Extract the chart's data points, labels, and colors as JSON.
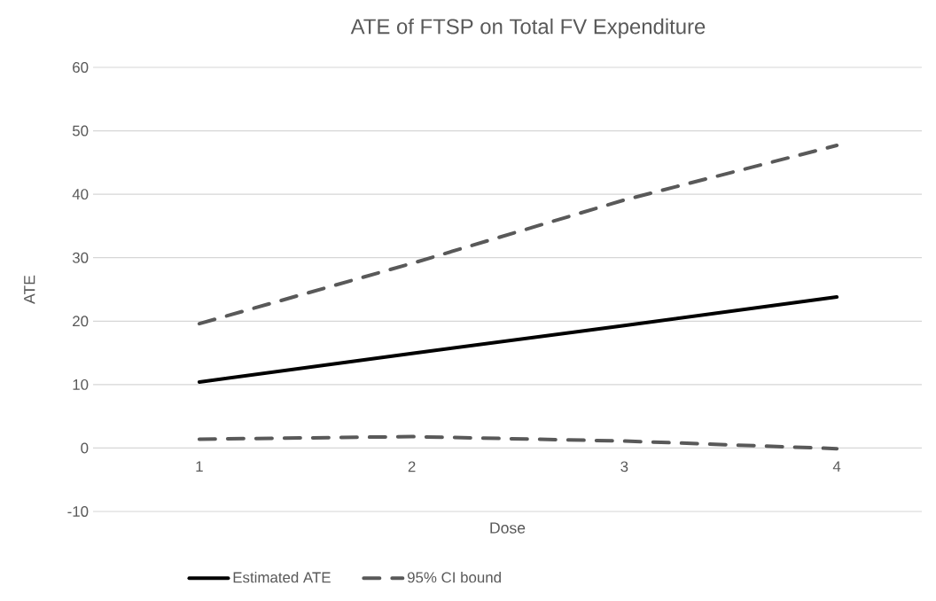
{
  "chart_data": {
    "type": "line",
    "title": "ATE of FTSP on Total FV Expenditure",
    "xlabel": "Dose",
    "ylabel": "ATE",
    "categories": [
      "1",
      "2",
      "3",
      "4"
    ],
    "ylim": [
      -10,
      60
    ],
    "yticks": [
      -10,
      0,
      10,
      20,
      30,
      40,
      50,
      60
    ],
    "grid": "y",
    "legend": "bottom",
    "marker": "none",
    "series": [
      {
        "name": "Estimated ATE",
        "color": "#000000",
        "line_style": "solid",
        "values": [
          10.4,
          14.9,
          19.3,
          23.8
        ]
      },
      {
        "name": "95% CI bound",
        "color": "#595959",
        "line_style": "dashed",
        "values": [
          19.6,
          29.1,
          39.1,
          47.7
        ]
      },
      {
        "color": "#595959",
        "line_style": "dashed",
        "values": [
          1.4,
          1.8,
          1.1,
          -0.1
        ]
      }
    ]
  }
}
